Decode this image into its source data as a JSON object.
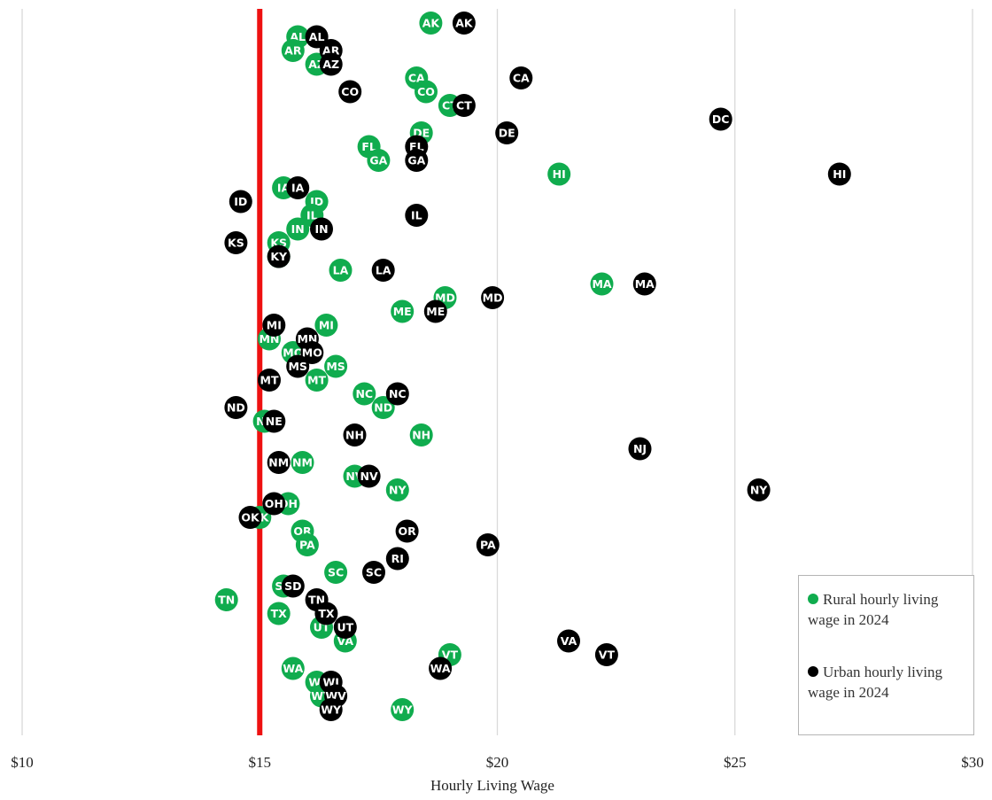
{
  "chart_data": {
    "type": "scatter",
    "title": "",
    "xlabel": "Hourly Living Wage",
    "ylabel": "",
    "xlim": [
      10,
      30
    ],
    "x_tick_labels": [
      {
        "value": 10,
        "label": "$10"
      },
      {
        "value": 15,
        "label": "$15"
      },
      {
        "value": 20,
        "label": "$20"
      },
      {
        "value": 25,
        "label": "$25"
      },
      {
        "value": 30,
        "label": "$30"
      }
    ],
    "grid": "vertical",
    "reference_line": {
      "x": 15,
      "color": "#ee1111"
    },
    "legend_position": "bottom-right",
    "colors": {
      "rural": "#10ac4e",
      "urban": "#000000",
      "reference": "#ee1111",
      "grid": "#d9d9d9"
    },
    "states": [
      "AK",
      "AL",
      "AR",
      "AZ",
      "CA",
      "CO",
      "CT",
      "DC",
      "DE",
      "FL",
      "GA",
      "HI",
      "IA",
      "ID",
      "IL",
      "IN",
      "KS",
      "KY",
      "LA",
      "MA",
      "MD",
      "ME",
      "MI",
      "MN",
      "MO",
      "MS",
      "MT",
      "NC",
      "ND",
      "NE",
      "NH",
      "NJ",
      "NM",
      "NV",
      "NY",
      "OH",
      "OK",
      "OR",
      "PA",
      "RI",
      "SC",
      "SD",
      "TN",
      "TX",
      "UT",
      "VA",
      "VT",
      "WA",
      "WI",
      "WV",
      "WY"
    ],
    "series": [
      {
        "name": "Rural hourly living wage in 2024",
        "points": [
          {
            "label": "AK",
            "x": 18.6
          },
          {
            "label": "AL",
            "x": 15.8
          },
          {
            "label": "AR",
            "x": 15.7
          },
          {
            "label": "AZ",
            "x": 16.2
          },
          {
            "label": "CA",
            "x": 18.3
          },
          {
            "label": "CO",
            "x": 18.5
          },
          {
            "label": "CT",
            "x": 19.0
          },
          {
            "label": "DE",
            "x": 18.4
          },
          {
            "label": "FL",
            "x": 17.3
          },
          {
            "label": "GA",
            "x": 17.5
          },
          {
            "label": "HI",
            "x": 21.3
          },
          {
            "label": "IA",
            "x": 15.5
          },
          {
            "label": "ID",
            "x": 16.2
          },
          {
            "label": "IL",
            "x": 16.1
          },
          {
            "label": "IN",
            "x": 15.8
          },
          {
            "label": "KS",
            "x": 15.4
          },
          {
            "label": "KY",
            "x": 15.4
          },
          {
            "label": "LA",
            "x": 16.7
          },
          {
            "label": "MA",
            "x": 22.2
          },
          {
            "label": "MD",
            "x": 18.9
          },
          {
            "label": "ME",
            "x": 18.0
          },
          {
            "label": "MI",
            "x": 16.4
          },
          {
            "label": "MN",
            "x": 15.2
          },
          {
            "label": "MO",
            "x": 15.7
          },
          {
            "label": "MS",
            "x": 16.6
          },
          {
            "label": "MT",
            "x": 16.2
          },
          {
            "label": "NC",
            "x": 17.2
          },
          {
            "label": "ND",
            "x": 17.6
          },
          {
            "label": "NE",
            "x": 15.1
          },
          {
            "label": "NH",
            "x": 18.4
          },
          {
            "label": "NM",
            "x": 15.9
          },
          {
            "label": "NV",
            "x": 17.0
          },
          {
            "label": "NY",
            "x": 17.9
          },
          {
            "label": "OH",
            "x": 15.6
          },
          {
            "label": "OK",
            "x": 15.0
          },
          {
            "label": "OR",
            "x": 15.9
          },
          {
            "label": "PA",
            "x": 16.0
          },
          {
            "label": "SC",
            "x": 16.6
          },
          {
            "label": "SD",
            "x": 15.5
          },
          {
            "label": "TN",
            "x": 14.3
          },
          {
            "label": "TX",
            "x": 15.4
          },
          {
            "label": "UT",
            "x": 16.3
          },
          {
            "label": "VA",
            "x": 16.8
          },
          {
            "label": "VT",
            "x": 19.0
          },
          {
            "label": "WA",
            "x": 15.7
          },
          {
            "label": "WI",
            "x": 16.2
          },
          {
            "label": "WV",
            "x": 16.3
          },
          {
            "label": "WY",
            "x": 18.0
          }
        ]
      },
      {
        "name": "Urban hourly living wage in 2024",
        "points": [
          {
            "label": "AK",
            "x": 19.3
          },
          {
            "label": "AL",
            "x": 16.2
          },
          {
            "label": "AR",
            "x": 16.5
          },
          {
            "label": "AZ",
            "x": 16.5
          },
          {
            "label": "CA",
            "x": 20.5
          },
          {
            "label": "CO",
            "x": 16.9
          },
          {
            "label": "CT",
            "x": 19.3
          },
          {
            "label": "DC",
            "x": 24.7
          },
          {
            "label": "DE",
            "x": 20.2
          },
          {
            "label": "FL",
            "x": 18.3
          },
          {
            "label": "GA",
            "x": 18.3
          },
          {
            "label": "HI",
            "x": 27.2
          },
          {
            "label": "IA",
            "x": 15.8
          },
          {
            "label": "ID",
            "x": 14.6
          },
          {
            "label": "IL",
            "x": 18.3
          },
          {
            "label": "IN",
            "x": 16.3
          },
          {
            "label": "KS",
            "x": 14.5
          },
          {
            "label": "KY",
            "x": 15.4
          },
          {
            "label": "LA",
            "x": 17.6
          },
          {
            "label": "MA",
            "x": 23.1
          },
          {
            "label": "MD",
            "x": 19.9
          },
          {
            "label": "ME",
            "x": 18.7
          },
          {
            "label": "MI",
            "x": 15.3
          },
          {
            "label": "MN",
            "x": 16.0
          },
          {
            "label": "MO",
            "x": 16.1
          },
          {
            "label": "MS",
            "x": 15.8
          },
          {
            "label": "MT",
            "x": 15.2
          },
          {
            "label": "NC",
            "x": 17.9
          },
          {
            "label": "ND",
            "x": 14.5
          },
          {
            "label": "NE",
            "x": 15.3
          },
          {
            "label": "NH",
            "x": 17.0
          },
          {
            "label": "NJ",
            "x": 23.0
          },
          {
            "label": "NM",
            "x": 15.4
          },
          {
            "label": "NV",
            "x": 17.3
          },
          {
            "label": "NY",
            "x": 25.5
          },
          {
            "label": "OH",
            "x": 15.3
          },
          {
            "label": "OK",
            "x": 14.8
          },
          {
            "label": "OR",
            "x": 18.1
          },
          {
            "label": "PA",
            "x": 19.8
          },
          {
            "label": "RI",
            "x": 17.9
          },
          {
            "label": "SC",
            "x": 17.4
          },
          {
            "label": "SD",
            "x": 15.7
          },
          {
            "label": "TN",
            "x": 16.2
          },
          {
            "label": "TX",
            "x": 16.4
          },
          {
            "label": "UT",
            "x": 16.8
          },
          {
            "label": "VA",
            "x": 21.5
          },
          {
            "label": "VT",
            "x": 22.3
          },
          {
            "label": "WA",
            "x": 18.8
          },
          {
            "label": "WI",
            "x": 16.5
          },
          {
            "label": "WV",
            "x": 16.6
          },
          {
            "label": "WY",
            "x": 16.5
          }
        ]
      }
    ]
  }
}
